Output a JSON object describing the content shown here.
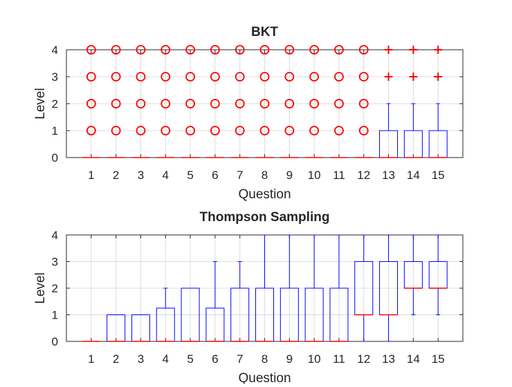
{
  "chart_data": [
    {
      "type": "boxplot",
      "title": "BKT",
      "xlabel": "Question",
      "ylabel": "Level",
      "xlim": [
        0,
        16
      ],
      "ylim": [
        0,
        4
      ],
      "grid": true,
      "categories": [
        "1",
        "2",
        "3",
        "4",
        "5",
        "6",
        "7",
        "8",
        "9",
        "10",
        "11",
        "12",
        "13",
        "14",
        "15"
      ],
      "yticks": [
        "0",
        "1",
        "2",
        "3",
        "4"
      ],
      "boxes": [
        {
          "q1": 0,
          "median": 0,
          "q3": 0,
          "low": 0,
          "high": 0,
          "outliers": [
            1,
            2,
            3,
            4
          ],
          "marker": "o"
        },
        {
          "q1": 0,
          "median": 0,
          "q3": 0,
          "low": 0,
          "high": 0,
          "outliers": [
            1,
            2,
            3,
            4
          ],
          "marker": "o"
        },
        {
          "q1": 0,
          "median": 0,
          "q3": 0,
          "low": 0,
          "high": 0,
          "outliers": [
            1,
            2,
            3,
            4
          ],
          "marker": "o"
        },
        {
          "q1": 0,
          "median": 0,
          "q3": 0,
          "low": 0,
          "high": 0,
          "outliers": [
            1,
            2,
            3,
            4
          ],
          "marker": "o"
        },
        {
          "q1": 0,
          "median": 0,
          "q3": 0,
          "low": 0,
          "high": 0,
          "outliers": [
            1,
            2,
            3,
            4
          ],
          "marker": "o"
        },
        {
          "q1": 0,
          "median": 0,
          "q3": 0,
          "low": 0,
          "high": 0,
          "outliers": [
            1,
            2,
            3,
            4
          ],
          "marker": "o"
        },
        {
          "q1": 0,
          "median": 0,
          "q3": 0,
          "low": 0,
          "high": 0,
          "outliers": [
            1,
            2,
            3,
            4
          ],
          "marker": "o"
        },
        {
          "q1": 0,
          "median": 0,
          "q3": 0,
          "low": 0,
          "high": 0,
          "outliers": [
            1,
            2,
            3,
            4
          ],
          "marker": "o"
        },
        {
          "q1": 0,
          "median": 0,
          "q3": 0,
          "low": 0,
          "high": 0,
          "outliers": [
            1,
            2,
            3,
            4
          ],
          "marker": "o"
        },
        {
          "q1": 0,
          "median": 0,
          "q3": 0,
          "low": 0,
          "high": 0,
          "outliers": [
            1,
            2,
            3,
            4
          ],
          "marker": "o"
        },
        {
          "q1": 0,
          "median": 0,
          "q3": 0,
          "low": 0,
          "high": 0,
          "outliers": [
            1,
            2,
            3,
            4
          ],
          "marker": "o"
        },
        {
          "q1": 0,
          "median": 0,
          "q3": 0,
          "low": 0,
          "high": 0,
          "outliers": [
            1,
            2,
            3,
            4
          ],
          "marker": "o"
        },
        {
          "q1": 0,
          "median": 0,
          "q3": 1,
          "low": 0,
          "high": 2,
          "outliers": [
            3,
            4
          ],
          "marker": "+"
        },
        {
          "q1": 0,
          "median": 0,
          "q3": 1,
          "low": 0,
          "high": 2,
          "outliers": [
            3,
            4
          ],
          "marker": "+"
        },
        {
          "q1": 0,
          "median": 0,
          "q3": 1,
          "low": 0,
          "high": 2,
          "outliers": [
            3,
            4
          ],
          "marker": "+"
        }
      ]
    },
    {
      "type": "boxplot",
      "title": "Thompson Sampling",
      "xlabel": "Question",
      "ylabel": "Level",
      "xlim": [
        0,
        16
      ],
      "ylim": [
        0,
        4
      ],
      "grid": true,
      "categories": [
        "1",
        "2",
        "3",
        "4",
        "5",
        "6",
        "7",
        "8",
        "9",
        "10",
        "11",
        "12",
        "13",
        "14",
        "15"
      ],
      "yticks": [
        "0",
        "1",
        "2",
        "3",
        "4"
      ],
      "boxes": [
        {
          "q1": 0,
          "median": 0,
          "q3": 0,
          "low": 0,
          "high": 0,
          "outliers": []
        },
        {
          "q1": 0,
          "median": 0,
          "q3": 1,
          "low": 0,
          "high": 1,
          "outliers": []
        },
        {
          "q1": 0,
          "median": 0,
          "q3": 1,
          "low": 0,
          "high": 1,
          "outliers": []
        },
        {
          "q1": 0,
          "median": 0,
          "q3": 1.25,
          "low": 0,
          "high": 2,
          "outliers": []
        },
        {
          "q1": 0,
          "median": 0,
          "q3": 2,
          "low": 0,
          "high": 2,
          "outliers": []
        },
        {
          "q1": 0,
          "median": 0,
          "q3": 1.25,
          "low": 0,
          "high": 3,
          "outliers": []
        },
        {
          "q1": 0,
          "median": 0,
          "q3": 2,
          "low": 0,
          "high": 3,
          "outliers": []
        },
        {
          "q1": 0,
          "median": 0,
          "q3": 2,
          "low": 0,
          "high": 4,
          "outliers": []
        },
        {
          "q1": 0,
          "median": 0,
          "q3": 2,
          "low": 0,
          "high": 4,
          "outliers": []
        },
        {
          "q1": 0,
          "median": 0,
          "q3": 2,
          "low": 0,
          "high": 4,
          "outliers": []
        },
        {
          "q1": 0,
          "median": 0,
          "q3": 2,
          "low": 0,
          "high": 4,
          "outliers": []
        },
        {
          "q1": 1,
          "median": 1,
          "q3": 3,
          "low": 0,
          "high": 4,
          "outliers": []
        },
        {
          "q1": 1,
          "median": 1,
          "q3": 3,
          "low": 0,
          "high": 4,
          "outliers": []
        },
        {
          "q1": 2,
          "median": 2,
          "q3": 3,
          "low": 1,
          "high": 4,
          "outliers": []
        },
        {
          "q1": 2,
          "median": 2,
          "q3": 3,
          "low": 1,
          "high": 4,
          "outliers": []
        }
      ]
    }
  ],
  "colors": {
    "box": "#0000ff",
    "median": "#ff0000",
    "outlier": "#ff0000",
    "grid": "#dcdcdc",
    "axis": "#262626"
  }
}
